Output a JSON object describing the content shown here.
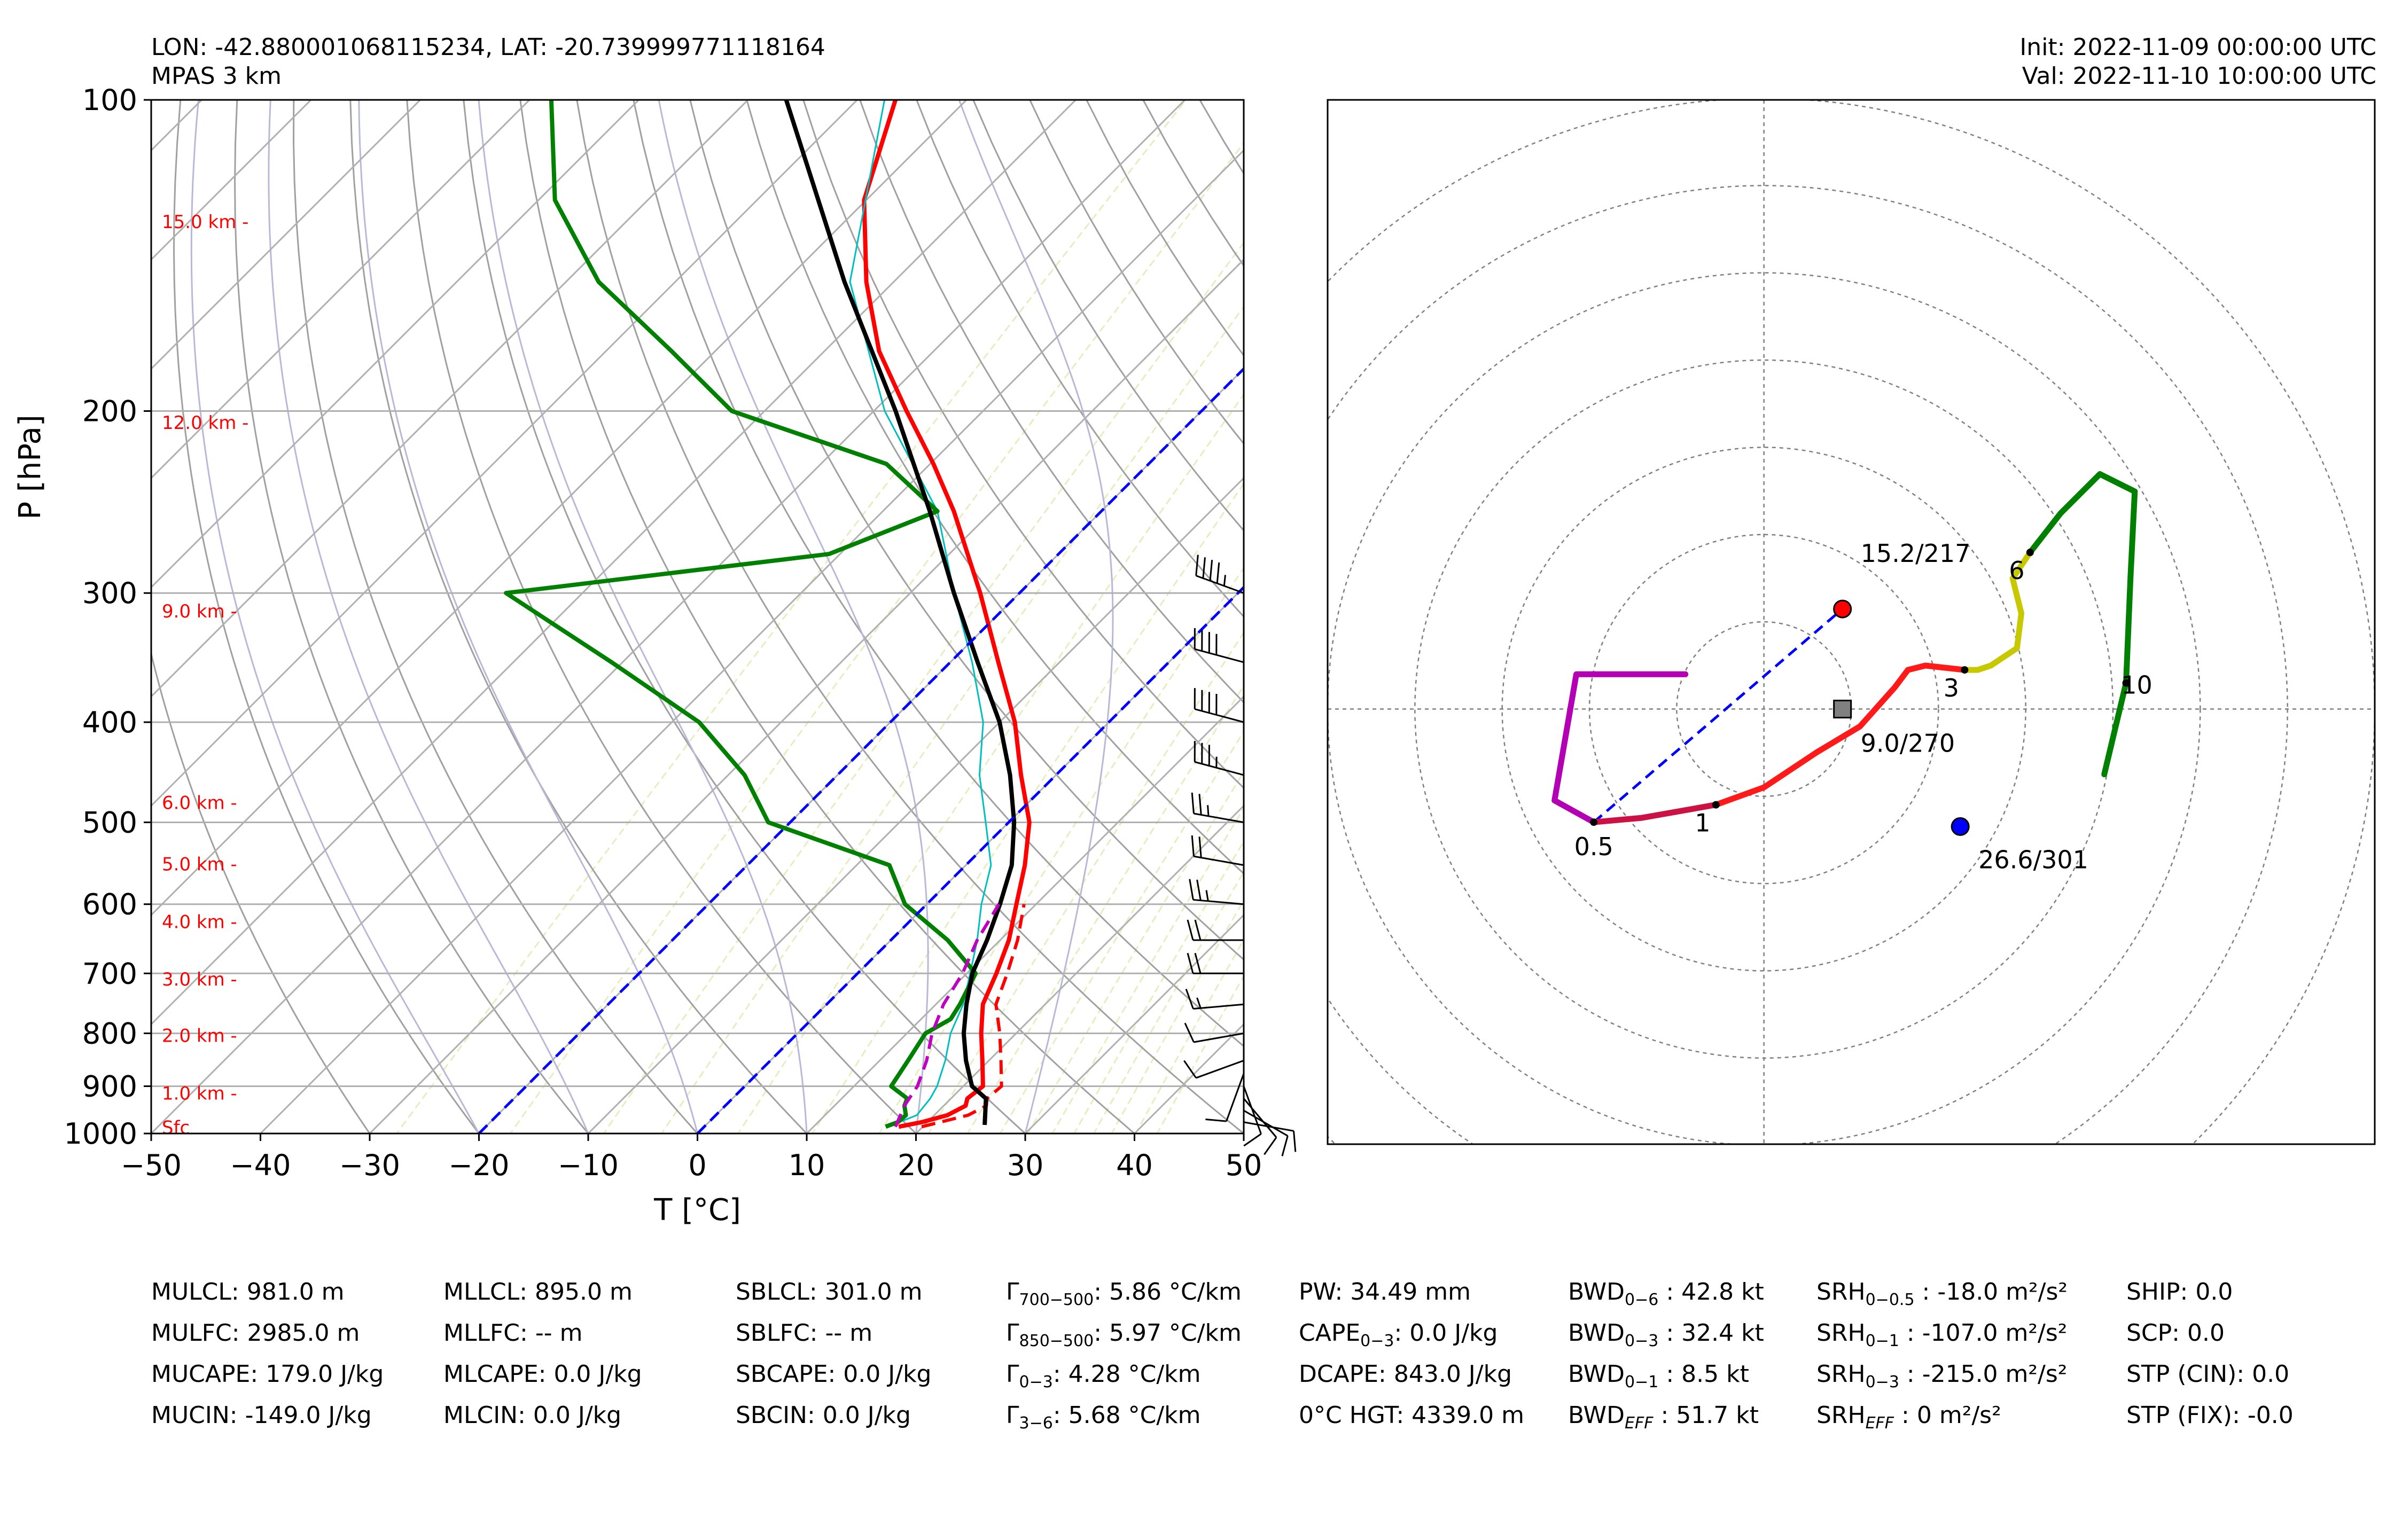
{
  "header": {
    "location": "LON: -42.880001068115234, LAT: -20.739999771118164",
    "model": "MPAS 3 km",
    "init": "Init: 2022-11-09 00:00:00 UTC",
    "valid": "Val: 2022-11-10 10:00:00 UTC"
  },
  "colors": {
    "temperature": "#ff0000",
    "dewpoint": "#008000",
    "virtual_temp": "#ff0000",
    "wetbulb": "#00bfbf",
    "parcel": "#000000",
    "downdraft": "#bf00bf",
    "isotherm_zero": "#0000ff",
    "height_labels": "#ff0000",
    "dry_adiabat": "#a0a0a0",
    "moist_adiabat": "#b8b8d8",
    "mixing_ratio": "#e8ecc0"
  },
  "chart_data": [
    {
      "type": "line",
      "subtype": "skew-t log-p",
      "xlabel": "T [°C]",
      "ylabel": "P [hPa]",
      "xlim": [
        -50,
        50
      ],
      "ylim": [
        1000,
        100
      ],
      "yscale": "log",
      "x_ticks": [
        -50,
        -40,
        -30,
        -20,
        -10,
        0,
        10,
        20,
        30,
        40,
        50
      ],
      "x_tick_labels": [
        "−50",
        "−40",
        "−30",
        "−20",
        "−10",
        "0",
        "10",
        "20",
        "30",
        "40",
        "50"
      ],
      "y_ticks": [
        100,
        200,
        300,
        400,
        500,
        600,
        700,
        800,
        900,
        1000
      ],
      "y_tick_labels": [
        "100",
        "200",
        "300",
        "400",
        "500",
        "600",
        "700",
        "800",
        "900",
        "1000"
      ],
      "height_labels": [
        {
          "p": 985,
          "label": "Sfc"
        },
        {
          "p": 913,
          "label": "1.0 km -"
        },
        {
          "p": 803,
          "label": "2.0 km -"
        },
        {
          "p": 708,
          "label": "3.0 km -"
        },
        {
          "p": 623,
          "label": "4.0 km -"
        },
        {
          "p": 548,
          "label": "5.0 km -"
        },
        {
          "p": 478,
          "label": "6.0 km -"
        },
        {
          "p": 312,
          "label": "9.0 km -"
        },
        {
          "p": 205,
          "label": "12.0 km -"
        },
        {
          "p": 131,
          "label": "15.0 km -"
        }
      ],
      "series": [
        {
          "key": "temperature",
          "style": "solid",
          "width": 8,
          "p": [
            985,
            975,
            960,
            940,
            925,
            900,
            850,
            800,
            750,
            700,
            650,
            600,
            550,
            500,
            450,
            400,
            350,
            300,
            250,
            225,
            200,
            175,
            150,
            125,
            100
          ],
          "t": [
            17.8,
            19.5,
            21.2,
            22.0,
            21.5,
            21.8,
            19.4,
            16.8,
            14.3,
            12.7,
            10.8,
            8.2,
            5.4,
            1.9,
            -3.2,
            -8.6,
            -15.6,
            -23.6,
            -33.5,
            -39.7,
            -47.0,
            -55.0,
            -62.5,
            -70.2,
            -76.5
          ]
        },
        {
          "key": "virtual_temp",
          "style": "dashed",
          "width": 6,
          "p": [
            985,
            960,
            940,
            925,
            900,
            850,
            800,
            750,
            700,
            650,
            600
          ],
          "t": [
            19.9,
            23.1,
            23.9,
            23.3,
            23.5,
            21.1,
            18.5,
            15.5,
            13.7,
            11.6,
            8.9
          ]
        },
        {
          "key": "wetbulb",
          "style": "solid",
          "width": 3,
          "p": [
            985,
            960,
            925,
            900,
            850,
            800,
            750,
            700,
            650,
            600,
            550,
            500,
            450,
            400,
            350,
            300,
            250,
            200,
            150,
            100
          ],
          "t": [
            16.8,
            18.4,
            18.1,
            17.6,
            16.0,
            14.0,
            12.5,
            10.3,
            7.9,
            5.0,
            2.3,
            -2.1,
            -7.0,
            -11.5,
            -18.0,
            -26.0,
            -35.0,
            -49.0,
            -64.0,
            -77.5
          ]
        },
        {
          "key": "dewpoint",
          "style": "solid",
          "width": 8,
          "p": [
            985,
            975,
            960,
            940,
            925,
            900,
            850,
            800,
            775,
            750,
            700,
            650,
            600,
            550,
            500,
            450,
            400,
            350,
            300,
            275,
            250,
            225,
            200,
            175,
            150,
            125,
            100
          ],
          "t": [
            16.6,
            17.3,
            17.4,
            16.4,
            16.0,
            13.4,
            12.6,
            11.7,
            12.7,
            12.2,
            10.8,
            5.2,
            -2.0,
            -7.0,
            -22.0,
            -28.5,
            -37.5,
            -51.0,
            -67.0,
            -41.0,
            -35.0,
            -44.0,
            -63.0,
            -74.0,
            -87.0,
            -98.5,
            -108.0
          ]
        },
        {
          "key": "parcel",
          "style": "solid",
          "width": 8,
          "p": [
            981,
            925,
            900,
            850,
            800,
            750,
            700,
            650,
            600,
            550,
            500,
            450,
            400,
            350,
            300,
            250,
            200,
            150,
            100
          ],
          "t": [
            25.5,
            23.2,
            20.8,
            17.9,
            15.2,
            12.8,
            10.5,
            8.8,
            6.7,
            4.2,
            0.5,
            -4.2,
            -10.0,
            -17.5,
            -26.0,
            -35.7,
            -48.0,
            -64.5,
            -86.5
          ]
        },
        {
          "key": "downdraft",
          "style": "dashed",
          "width": 6,
          "p": [
            985,
            940,
            900,
            850,
            800,
            750,
            700,
            650,
            600
          ],
          "t": [
            17.5,
            16.4,
            15.8,
            14.3,
            12.3,
            10.7,
            9.6,
            7.9,
            6.6
          ]
        },
        {
          "key": "isotherm_zero",
          "style": "dashed",
          "width": 5,
          "p": [
            1000,
            100
          ],
          "t": [
            0,
            0
          ]
        },
        {
          "key": "isotherm_zero",
          "style": "dashed",
          "width": 5,
          "p": [
            1000,
            100
          ],
          "t": [
            -20,
            -20
          ]
        }
      ],
      "wind_barbs": [
        {
          "p": 300,
          "spd": 45,
          "dir": 290
        },
        {
          "p": 350,
          "spd": 40,
          "dir": 285
        },
        {
          "p": 400,
          "spd": 40,
          "dir": 285
        },
        {
          "p": 450,
          "spd": 35,
          "dir": 285
        },
        {
          "p": 500,
          "spd": 25,
          "dir": 280
        },
        {
          "p": 550,
          "spd": 20,
          "dir": 280
        },
        {
          "p": 600,
          "spd": 25,
          "dir": 275
        },
        {
          "p": 650,
          "spd": 20,
          "dir": 270
        },
        {
          "p": 700,
          "spd": 20,
          "dir": 270
        },
        {
          "p": 750,
          "spd": 15,
          "dir": 265
        },
        {
          "p": 800,
          "spd": 10,
          "dir": 260
        },
        {
          "p": 850,
          "spd": 10,
          "dir": 250
        },
        {
          "p": 875,
          "spd": 10,
          "dir": 200
        },
        {
          "p": 900,
          "spd": 10,
          "dir": 160
        },
        {
          "p": 925,
          "spd": 10,
          "dir": 140
        },
        {
          "p": 950,
          "spd": 10,
          "dir": 120
        },
        {
          "p": 975,
          "spd": 10,
          "dir": 100
        }
      ]
    },
    {
      "type": "line",
      "subtype": "hodograph",
      "xlim": [
        -10,
        14
      ],
      "ylim": [
        -10,
        14
      ],
      "rings": [
        2,
        4,
        6,
        8,
        10,
        12,
        14
      ],
      "grid": true,
      "segments": [
        {
          "name": "0-0.5 km",
          "color": "#b400b4",
          "u": [
            -1.8,
            -4.3,
            -4.8,
            -3.9
          ],
          "v": [
            0.8,
            0.8,
            -2.1,
            -2.6
          ]
        },
        {
          "name": "0.5-1 km",
          "color": "#cc1144",
          "u": [
            -3.9,
            -2.8,
            -1.1
          ],
          "v": [
            -2.6,
            -2.5,
            -2.2
          ]
        },
        {
          "name": "1-3 km",
          "color": "#ff1a1a",
          "u": [
            -1.1,
            0.0,
            1.2,
            2.2,
            3.0,
            3.3,
            3.7,
            4.6
          ],
          "v": [
            -2.2,
            -1.8,
            -1.0,
            -0.4,
            0.5,
            0.9,
            1.0,
            0.9
          ]
        },
        {
          "name": "3-6 km",
          "color": "#c8c800",
          "u": [
            4.6,
            4.9,
            5.2,
            5.8,
            5.9,
            5.7,
            6.1
          ],
          "v": [
            0.9,
            0.9,
            1.0,
            1.4,
            2.2,
            3.0,
            3.6
          ]
        },
        {
          "name": "6-10 km",
          "color": "#008000",
          "u": [
            6.1,
            6.8,
            7.7,
            8.5,
            8.4,
            8.3,
            7.8
          ],
          "v": [
            3.6,
            4.5,
            5.4,
            5.0,
            3.0,
            0.6,
            -1.5
          ]
        }
      ],
      "height_marks": [
        {
          "u": -3.9,
          "v": -2.6,
          "label": "0.5"
        },
        {
          "u": -1.1,
          "v": -2.2,
          "label": "1"
        },
        {
          "u": 4.6,
          "v": 0.9,
          "label": "3"
        },
        {
          "u": 6.1,
          "v": 3.6,
          "label": "6"
        },
        {
          "u": 8.3,
          "v": 0.6,
          "label": "10"
        }
      ],
      "storm_motions": [
        {
          "name": "right-mover",
          "u": 1.8,
          "v": 2.3,
          "color": "#ff0000",
          "marker": "circle",
          "label": "15.2/217"
        },
        {
          "name": "mean-wind",
          "u": 1.8,
          "v": 0.0,
          "color": "#808080",
          "marker": "square",
          "label": "9.0/270"
        },
        {
          "name": "left-mover",
          "u": 4.5,
          "v": -2.7,
          "color": "#0000ff",
          "marker": "circle",
          "label": "26.6/301"
        }
      ],
      "shear_vector": {
        "from_u": -3.9,
        "from_v": -2.6,
        "to_u": 1.8,
        "to_v": 2.3
      }
    }
  ],
  "parameters": [
    [
      "MULCL: 981.0 m",
      "MULFC: 2985.0 m",
      "MUCAPE: 179.0 J/kg",
      "MUCIN: -149.0 J/kg"
    ],
    [
      "MLLCL: 895.0 m",
      "MLLFC: -- m",
      "MLCAPE: 0.0 J/kg",
      "MLCIN: 0.0 J/kg"
    ],
    [
      "SBLCL: 301.0 m",
      "SBLFC: -- m",
      "SBCAPE: 0.0 J/kg",
      "SBCIN: 0.0 J/kg"
    ],
    [
      "Γ700−500: 5.86 °C/km",
      "Γ850−500: 5.97 °C/km",
      "Γ0−3: 4.28 °C/km",
      "Γ3−6: 5.68 °C/km"
    ],
    [
      "PW: 34.49 mm",
      "CAPE0−3: 0.0 J/kg",
      "DCAPE: 843.0 J/kg",
      "0°C HGT: 4339.0 m"
    ],
    [
      "BWD0−6 : 42.8 kt",
      "BWD0−3 : 32.4 kt",
      "BWD0−1 : 8.5 kt",
      "BWDEFF : 51.7 kt"
    ],
    [
      "SRH0−0.5 : -18.0 m²/s²",
      "SRH0−1 : -107.0 m²/s²",
      "SRH0−3 : -215.0 m²/s²",
      "SRHEFF : 0 m²/s²"
    ],
    [
      "SHIP: 0.0",
      "SCP: 0.0",
      "STP (CIN): 0.0",
      "STP (FIX): -0.0"
    ]
  ]
}
